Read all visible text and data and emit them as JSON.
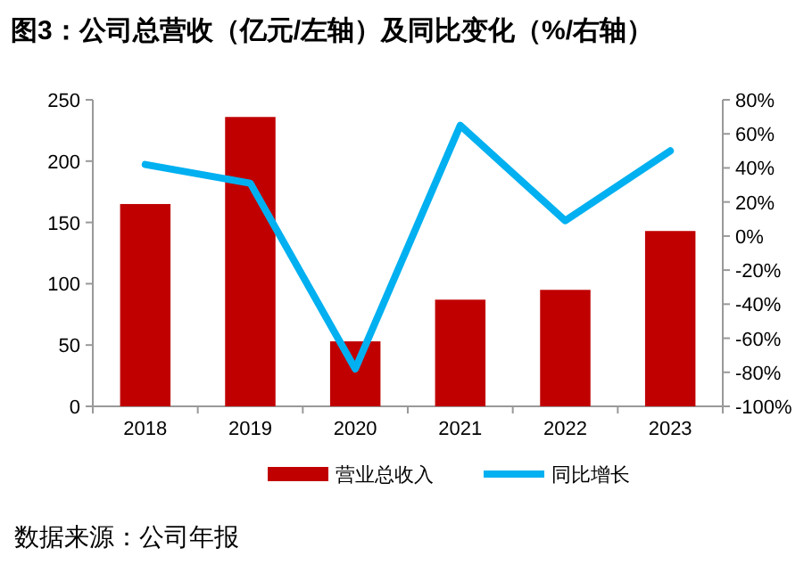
{
  "chart_data": {
    "type": "bar",
    "title": "图3：公司总营收（亿元/左轴）及同比变化（%/右轴）",
    "categories": [
      "2018",
      "2019",
      "2020",
      "2021",
      "2022",
      "2023"
    ],
    "series": [
      {
        "name": "营业总收入",
        "color": "#c00000",
        "values": [
          165,
          236,
          53,
          87,
          95,
          143
        ]
      },
      {
        "name": "同比增长",
        "type": "line",
        "axis": "y2",
        "color": "#00b0f0",
        "values": [
          42,
          31,
          -78,
          65,
          9,
          50
        ]
      }
    ],
    "ylim": [
      0,
      250
    ],
    "yticks": [
      0,
      50,
      100,
      150,
      200,
      250
    ],
    "y2lim": [
      -100,
      80
    ],
    "y2ticks": [
      {
        "value": -100,
        "label": "-100%"
      },
      {
        "value": -80,
        "label": "-80%"
      },
      {
        "value": -60,
        "label": "-60%"
      },
      {
        "value": -40,
        "label": "-40%"
      },
      {
        "value": -20,
        "label": "-20%"
      },
      {
        "value": 0,
        "label": "0%"
      },
      {
        "value": 20,
        "label": "20%"
      },
      {
        "value": 40,
        "label": "40%"
      },
      {
        "value": 60,
        "label": "60%"
      },
      {
        "value": 80,
        "label": "80%"
      }
    ],
    "legend": "bottom",
    "grid": false,
    "annotations": [
      "数据来源：公司年报"
    ]
  }
}
